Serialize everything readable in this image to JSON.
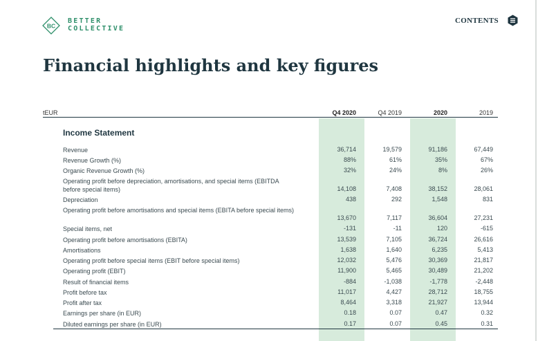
{
  "logo": {
    "line1": "BETTER",
    "line2": "COLLECTIVE",
    "mark": "BC"
  },
  "nav": {
    "contents_label": "CONTENTS",
    "contents_icon": "menu-list-icon"
  },
  "page": {
    "title": "Financial highlights and key figures"
  },
  "colors": {
    "navy": "#1f3640",
    "green": "#2e8f6a",
    "highlight": "#d7ebdc"
  },
  "table": {
    "unit": "tEUR",
    "columns": [
      "Q4 2020",
      "Q4 2019",
      "2020",
      "2019"
    ],
    "section": "Income Statement",
    "rows": [
      {
        "label": "Revenue",
        "values": [
          "36,714",
          "19,579",
          "91,186",
          "67,449"
        ]
      },
      {
        "label": "Revenue Growth (%)",
        "values": [
          "88%",
          "61%",
          "35%",
          "67%"
        ]
      },
      {
        "label": "Organic Revenue Growth (%)",
        "values": [
          "32%",
          "24%",
          "8%",
          "26%"
        ]
      },
      {
        "label": "Operating profit before depreciation, amortisations, and special items (EBITDA before special items)",
        "values": [
          "14,108",
          "7,408",
          "38,152",
          "28,061"
        ]
      },
      {
        "label": "Depreciation",
        "values": [
          "438",
          "292",
          "1,548",
          "831"
        ]
      },
      {
        "label": "Operating profit before amortisations and special items (EBITA before special items)",
        "values": [
          "13,670",
          "7,117",
          "36,604",
          "27,231"
        ]
      },
      {
        "label": "Special items, net",
        "values": [
          "-131",
          "-11",
          "120",
          "-615"
        ]
      },
      {
        "label": "Operating profit before amortisations (EBITA)",
        "values": [
          "13,539",
          "7,105",
          "36,724",
          "26,616"
        ]
      },
      {
        "label": "Amortisations",
        "values": [
          "1,638",
          "1,640",
          "6,235",
          "5,413"
        ]
      },
      {
        "label": "Operating profit before special items (EBIT before special items)",
        "values": [
          "12,032",
          "5,476",
          "30,369",
          "21,817"
        ]
      },
      {
        "label": "Operating profit (EBIT)",
        "values": [
          "11,900",
          "5,465",
          "30,489",
          "21,202"
        ]
      },
      {
        "label": "Result of financial items",
        "values": [
          "-884",
          "-1,038",
          "-1,778",
          "-2,448"
        ]
      },
      {
        "label": "Profit before tax",
        "values": [
          "11,017",
          "4,427",
          "28,712",
          "18,755"
        ]
      },
      {
        "label": "Profit after tax",
        "values": [
          "8,464",
          "3,318",
          "21,927",
          "13,944"
        ]
      },
      {
        "label": "Earnings per share (in EUR)",
        "values": [
          "0.18",
          "0.07",
          "0.47",
          "0.32"
        ]
      },
      {
        "label": "Diluted earnings per share (in EUR)",
        "values": [
          "0.17",
          "0.07",
          "0.45",
          "0.31"
        ]
      }
    ]
  }
}
